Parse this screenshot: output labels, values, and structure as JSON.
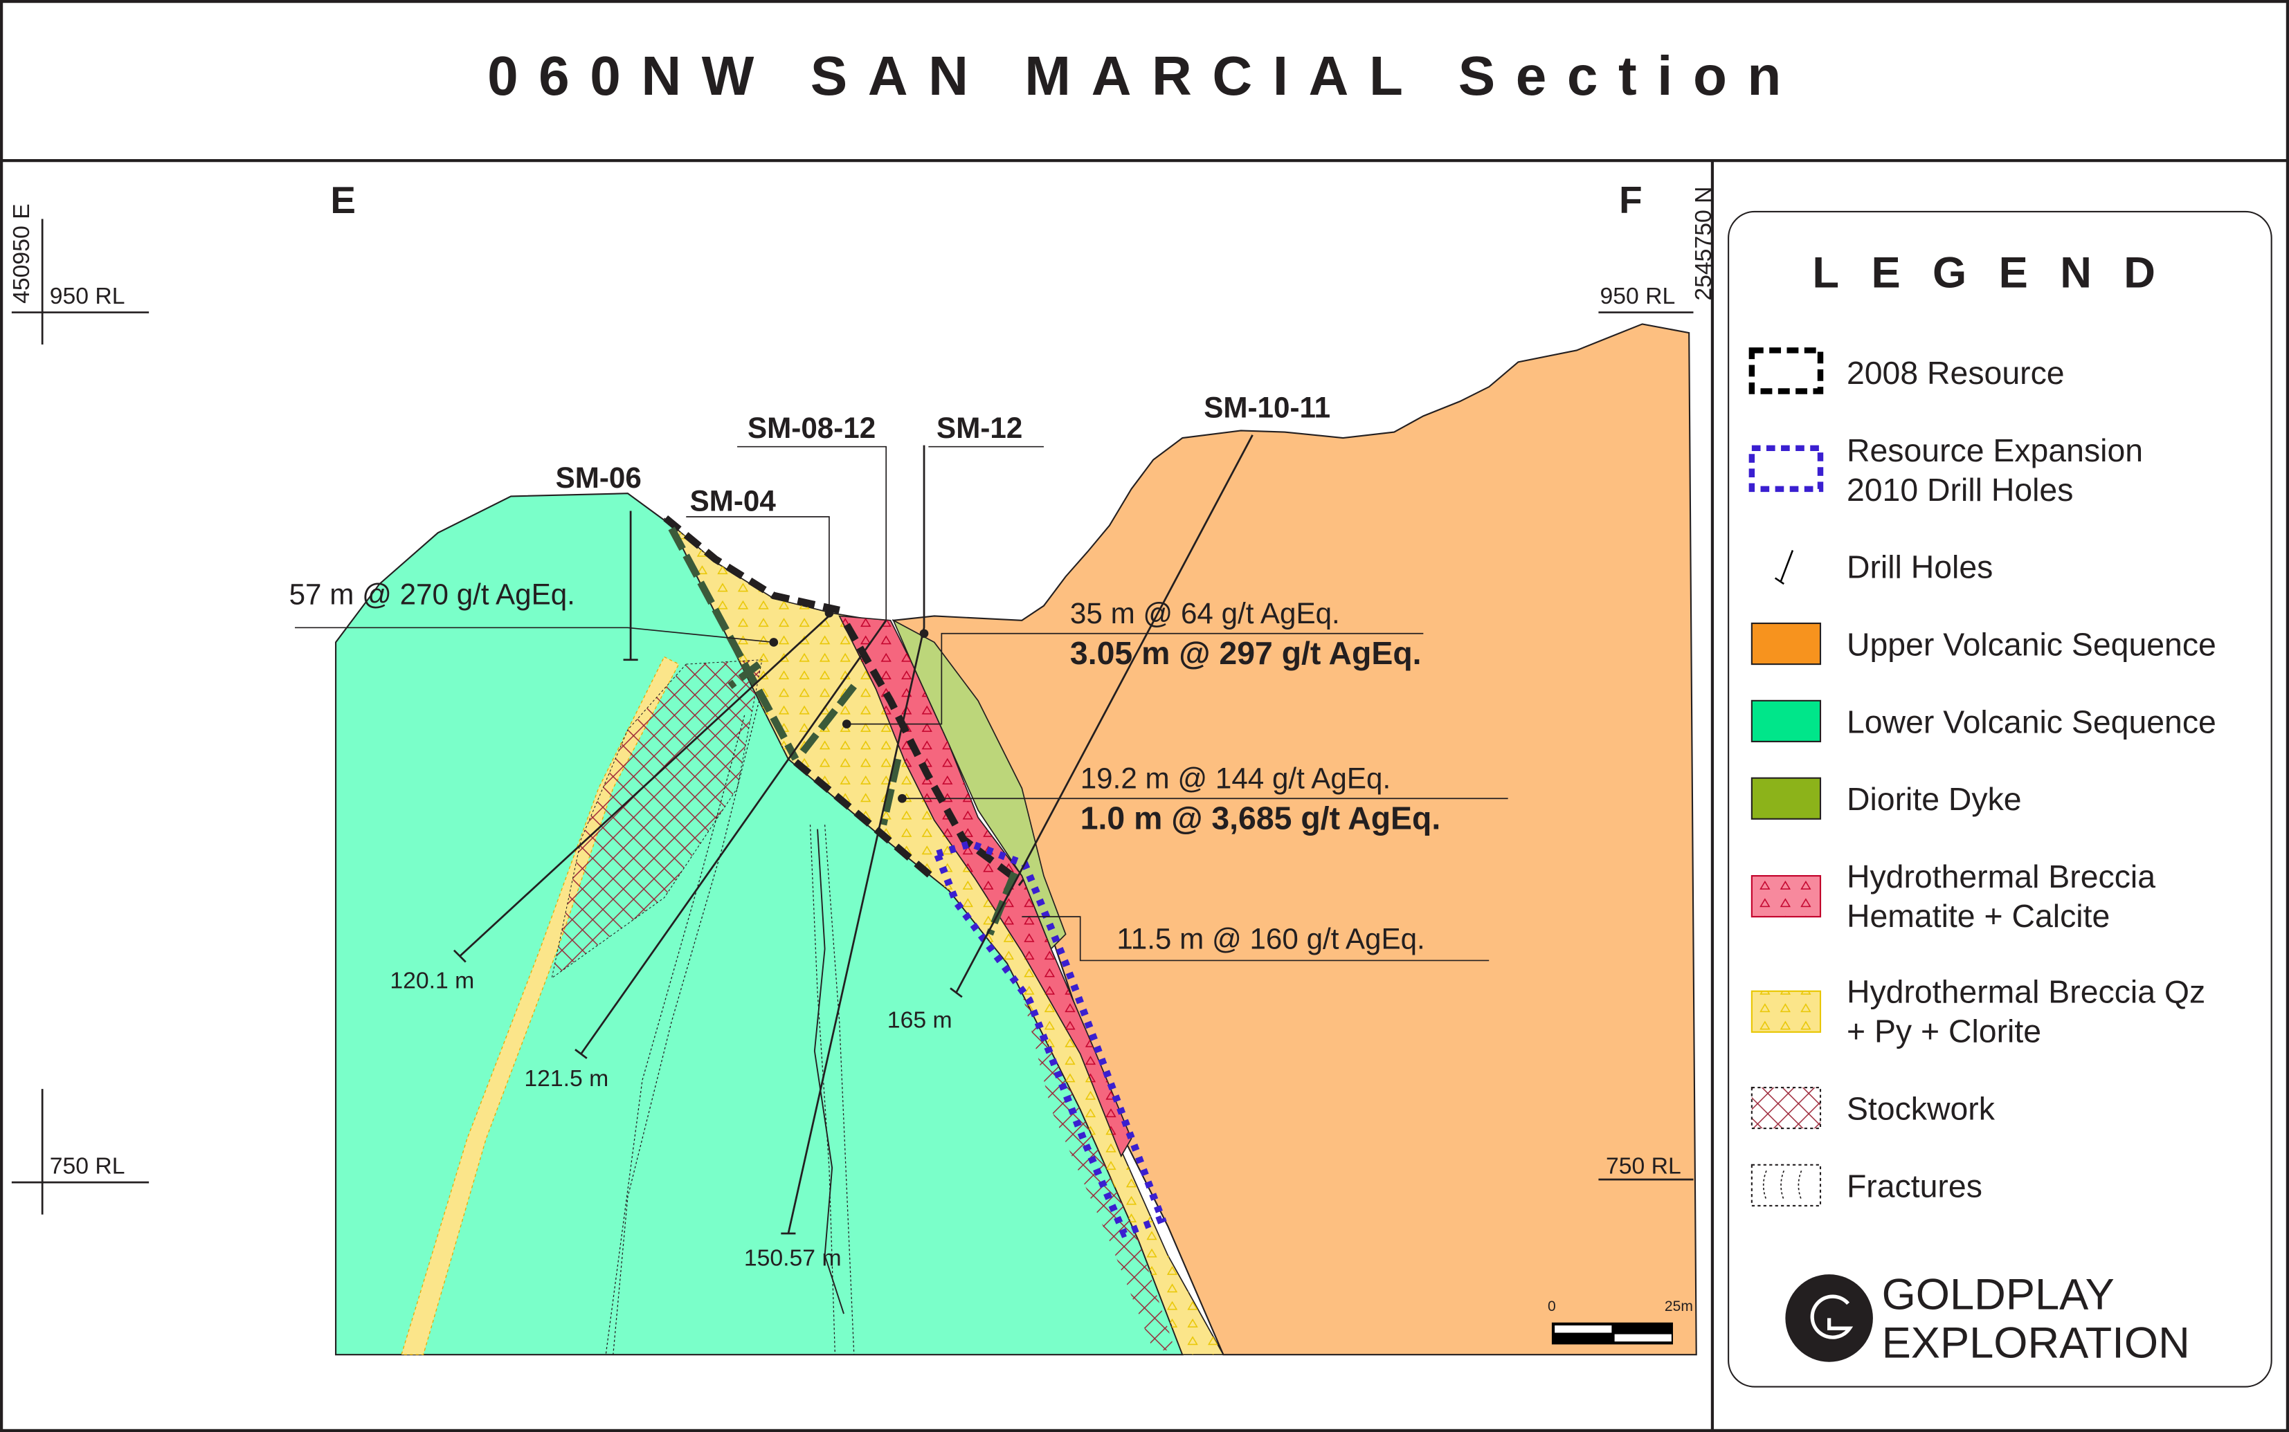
{
  "title": "060NW SAN MARCIAL Section",
  "section_ends": {
    "left": "E",
    "right": "F"
  },
  "coordinates": {
    "easting": "450950 E",
    "northing": "2545750 N",
    "rl_950_left": "950 RL",
    "rl_950_right": "950 RL",
    "rl_750_left": "750 RL",
    "rl_750_right": "750 RL"
  },
  "drill_holes": [
    {
      "name": "SM-06",
      "depth": ""
    },
    {
      "name": "SM-04",
      "depth": "120.1 m"
    },
    {
      "name": "SM-08-12",
      "depth": "121.5 m"
    },
    {
      "name": "SM-12",
      "depth": "150.57 m"
    },
    {
      "name": "SM-10-11",
      "depth": "165 m"
    }
  ],
  "intercepts": [
    {
      "line1": "57 m @ 270 g/t AgEq.",
      "line2": ""
    },
    {
      "line1": "35 m @ 64 g/t AgEq.",
      "line2": "3.05 m @ 297 g/t AgEq."
    },
    {
      "line1": "19.2 m @ 144 g/t AgEq.",
      "line2": "1.0 m @ 3,685 g/t AgEq."
    },
    {
      "line1": "11.5 m @ 160 g/t AgEq.",
      "line2": ""
    }
  ],
  "scale_bar": {
    "start": "0",
    "end": "25m"
  },
  "legend": {
    "title": "LEGEND",
    "items": [
      {
        "label1": "2008 Resource",
        "label2": "",
        "color": "#000000"
      },
      {
        "label1": "Resource Expansion",
        "label2": "2010 Drill Holes",
        "color": "#3a1fd0"
      },
      {
        "label1": "Drill Holes",
        "label2": "",
        "color": "#000000"
      },
      {
        "label1": "Upper Volcanic Sequence",
        "label2": "",
        "color": "#f7931e"
      },
      {
        "label1": "Lower Volcanic Sequence",
        "label2": "",
        "color": "#00e68a"
      },
      {
        "label1": "Diorite Dyke",
        "label2": "",
        "color": "#8cb31a"
      },
      {
        "label1": "Hydrothermal Breccia",
        "label2": "Hematite + Calcite",
        "color": "#f7899d"
      },
      {
        "label1": "Hydrothermal Breccia Qz",
        "label2": "+ Py + Clorite",
        "color": "#fbe58a"
      },
      {
        "label1": "Stockwork",
        "label2": "",
        "color": "#9b2335"
      },
      {
        "label1": "Fractures",
        "label2": "",
        "color": "#000000"
      }
    ]
  },
  "logo": {
    "line1": "GOLDPLAY",
    "line2": "EXPLORATION"
  },
  "colors": {
    "upper_volcanic": "#fdbf80",
    "lower_volcanic": "#7affc9",
    "diorite": "#bcd67a",
    "breccia_hematite": "#f5667e",
    "breccia_qz": "#fbe58a"
  }
}
